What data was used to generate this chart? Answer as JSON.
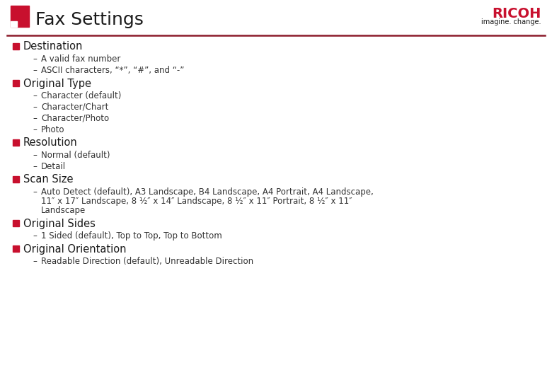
{
  "title": "Fax Settings",
  "title_color": "#1a1a1a",
  "title_fontsize": 18,
  "ricoh_text": "RICOH",
  "ricoh_sub": "imagine. change.",
  "ricoh_color": "#c8102e",
  "ricoh_fs": 14,
  "ricoh_sub_fs": 7,
  "line_color": "#8b1a2a",
  "square_color": "#c8102e",
  "bg_color": "#ffffff",
  "bullet_color": "#c8102e",
  "heading_color": "#1a1a1a",
  "sub_color": "#333333",
  "heading_fontsize": 10.5,
  "sub_fontsize": 8.5,
  "sections": [
    {
      "heading": "Destination",
      "items": [
        "A valid fax number",
        "ASCII characters, “*”, “#”, and “-”"
      ]
    },
    {
      "heading": "Original Type",
      "items": [
        "Character (default)",
        "Character/Chart",
        "Character/Photo",
        "Photo"
      ]
    },
    {
      "heading": "Resolution",
      "items": [
        "Normal (default)",
        "Detail"
      ]
    },
    {
      "heading": "Scan Size",
      "items": [
        "Auto Detect (default), A3 Landscape, B4 Landscape, A4 Portrait, A4 Landscape,\n11″ x 17″ Landscape, 8 ½″ x 14″ Landscape, 8 ½″ x 11″ Portrait, 8 ½″ x 11″\nLandscape"
      ]
    },
    {
      "heading": "Original Sides",
      "items": [
        "1 Sided (default), Top to Top, Top to Bottom"
      ]
    },
    {
      "heading": "Original Orientation",
      "items": [
        "Readable Direction (default), Unreadable Direction"
      ]
    }
  ]
}
